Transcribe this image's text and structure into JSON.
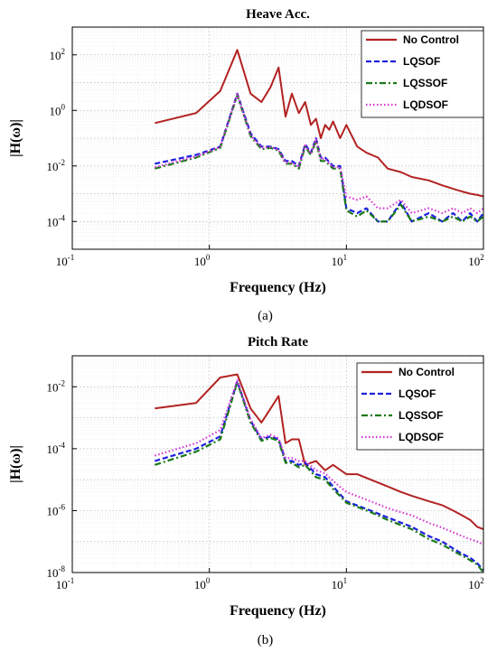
{
  "chart_data": [
    {
      "type": "line",
      "panel_label": "(a)",
      "title": "Heave Acc.",
      "xlabel": "Frequency (Hz)",
      "ylabel": "|H(ω)|",
      "xscale": "log",
      "yscale": "log",
      "xlim": [
        0.1,
        100
      ],
      "ylim": [
        1e-05,
        1000
      ],
      "x_ticks": [
        {
          "base": "10",
          "exp": "-1"
        },
        {
          "base": "10",
          "exp": "0"
        },
        {
          "base": "10",
          "exp": "1"
        },
        {
          "base": "10",
          "exp": "2"
        }
      ],
      "y_ticks": [
        {
          "base": "10",
          "exp": "-4"
        },
        {
          "base": "10",
          "exp": "-2"
        },
        {
          "base": "10",
          "exp": "0"
        },
        {
          "base": "10",
          "exp": "2"
        }
      ],
      "grid": true,
      "legend_position": "top-right",
      "series": [
        {
          "name": "No Control",
          "color": "#b22222",
          "style": "solid",
          "x": [
            0.4,
            0.8,
            1.2,
            1.6,
            2.0,
            2.4,
            2.8,
            3.2,
            3.6,
            4.0,
            4.5,
            5.0,
            5.5,
            6.0,
            6.5,
            7.0,
            7.5,
            8.0,
            9.0,
            10,
            12,
            14,
            17,
            20,
            25,
            30,
            40,
            50,
            60,
            70,
            80,
            90,
            100
          ],
          "y": [
            0.35,
            0.8,
            5,
            150,
            4,
            2,
            7,
            35,
            0.6,
            4,
            0.8,
            2,
            0.3,
            0.5,
            0.1,
            0.3,
            0.2,
            0.4,
            0.1,
            0.3,
            0.05,
            0.03,
            0.02,
            0.008,
            0.006,
            0.004,
            0.003,
            0.002,
            0.0015,
            0.0012,
            0.001,
            0.0009,
            0.0008
          ]
        },
        {
          "name": "LQSOF",
          "color": "#1f1fe0",
          "style": "dashed",
          "x": [
            0.4,
            0.8,
            1.2,
            1.6,
            2.0,
            2.4,
            2.8,
            3.2,
            3.6,
            4.0,
            4.5,
            5.0,
            5.5,
            6.0,
            6.5,
            7.0,
            8.0,
            9.0,
            10,
            12,
            14,
            17,
            20,
            25,
            30,
            40,
            50,
            60,
            70,
            80,
            90,
            100
          ],
          "y": [
            0.012,
            0.025,
            0.05,
            4,
            0.15,
            0.05,
            0.05,
            0.04,
            0.015,
            0.015,
            0.01,
            0.06,
            0.03,
            0.1,
            0.02,
            0.02,
            0.01,
            0.01,
            0.0003,
            0.0002,
            0.0003,
            0.0001,
            0.0001,
            0.0005,
            0.0001,
            0.0002,
            0.0001,
            0.0002,
            0.0001,
            0.0002,
            0.0001,
            0.0002
          ]
        },
        {
          "name": "LQSSOF",
          "color": "#1a7a1a",
          "style": "dashdot",
          "x": [
            0.4,
            0.8,
            1.2,
            1.6,
            2.0,
            2.4,
            2.8,
            3.2,
            3.6,
            4.0,
            4.5,
            5.0,
            5.5,
            6.0,
            6.5,
            7.0,
            8.0,
            9.0,
            10,
            12,
            14,
            17,
            20,
            25,
            30,
            40,
            50,
            60,
            70,
            80,
            90,
            100
          ],
          "y": [
            0.008,
            0.02,
            0.045,
            3.5,
            0.12,
            0.04,
            0.045,
            0.035,
            0.012,
            0.012,
            0.008,
            0.05,
            0.025,
            0.08,
            0.015,
            0.015,
            0.008,
            0.008,
            0.00025,
            0.00015,
            0.00025,
            0.0001,
            0.0001,
            0.0004,
            0.0001,
            0.00015,
            0.0001,
            0.00015,
            0.0001,
            0.00015,
            0.0001,
            0.00015
          ]
        },
        {
          "name": "LQDSOF",
          "color": "#d633d6",
          "style": "dotted",
          "x": [
            0.4,
            0.8,
            1.2,
            1.6,
            2.0,
            2.4,
            2.8,
            3.2,
            3.6,
            4.0,
            4.5,
            5.0,
            5.5,
            6.0,
            6.5,
            7.0,
            8.0,
            9.0,
            10,
            12,
            14,
            17,
            20,
            25,
            30,
            40,
            50,
            60,
            70,
            80,
            90,
            100
          ],
          "y": [
            0.009,
            0.022,
            0.048,
            3.8,
            0.13,
            0.045,
            0.048,
            0.038,
            0.013,
            0.013,
            0.009,
            0.055,
            0.028,
            0.09,
            0.018,
            0.018,
            0.009,
            0.009,
            0.0008,
            0.0006,
            0.0008,
            0.0003,
            0.0003,
            0.0006,
            0.0002,
            0.0003,
            0.0002,
            0.0003,
            0.0002,
            0.0003,
            0.0002,
            0.0003
          ]
        }
      ]
    },
    {
      "type": "line",
      "panel_label": "(b)",
      "title": "Pitch Rate",
      "xlabel": "Frequency (Hz)",
      "ylabel": "|H(ω)|",
      "xscale": "log",
      "yscale": "log",
      "xlim": [
        0.1,
        100
      ],
      "ylim": [
        1e-08,
        0.1
      ],
      "x_ticks": [
        {
          "base": "10",
          "exp": "-1"
        },
        {
          "base": "10",
          "exp": "0"
        },
        {
          "base": "10",
          "exp": "1"
        },
        {
          "base": "10",
          "exp": "2"
        }
      ],
      "y_ticks": [
        {
          "base": "10",
          "exp": "-8"
        },
        {
          "base": "10",
          "exp": "-6"
        },
        {
          "base": "10",
          "exp": "-4"
        },
        {
          "base": "10",
          "exp": "-2"
        }
      ],
      "grid": true,
      "legend_position": "top-right",
      "series": [
        {
          "name": "No Control",
          "color": "#b22222",
          "style": "solid",
          "x": [
            0.4,
            0.8,
            1.2,
            1.6,
            2.0,
            2.4,
            2.8,
            3.2,
            3.6,
            4.0,
            4.5,
            5.0,
            6.0,
            7.0,
            8.0,
            10,
            12,
            15,
            20,
            25,
            30,
            40,
            50,
            60,
            70,
            80,
            90,
            100
          ],
          "y": [
            0.002,
            0.003,
            0.02,
            0.025,
            0.002,
            0.0007,
            0.002,
            0.005,
            0.00015,
            0.0002,
            0.0002,
            3e-05,
            4e-05,
            2e-05,
            3e-05,
            1.5e-05,
            1.5e-05,
            1e-05,
            6e-06,
            4e-06,
            3e-06,
            2e-06,
            1.5e-06,
            1e-06,
            7e-07,
            5e-07,
            3e-07,
            2.5e-07
          ]
        },
        {
          "name": "LQSOF",
          "color": "#1f1fe0",
          "style": "dashed",
          "x": [
            0.4,
            0.8,
            1.2,
            1.6,
            2.0,
            2.4,
            2.8,
            3.2,
            3.6,
            4.0,
            4.5,
            5.0,
            6.0,
            7.0,
            8.0,
            10,
            15,
            20,
            30,
            40,
            50,
            60,
            70,
            80,
            90,
            100
          ],
          "y": [
            4e-05,
            0.0001,
            0.00025,
            0.015,
            0.0008,
            0.0002,
            0.00025,
            0.0002,
            4e-05,
            4e-05,
            3e-05,
            3.5e-05,
            1.5e-05,
            1.2e-05,
            6e-06,
            2e-06,
            1e-06,
            6e-07,
            3e-07,
            1.5e-07,
            1e-07,
            6e-08,
            4e-08,
            3e-08,
            2e-08,
            1.2e-08
          ]
        },
        {
          "name": "LQSSOF",
          "color": "#1a7a1a",
          "style": "dashdot",
          "x": [
            0.4,
            0.8,
            1.2,
            1.6,
            2.0,
            2.4,
            2.8,
            3.2,
            3.6,
            4.0,
            4.5,
            5.0,
            6.0,
            7.0,
            8.0,
            10,
            15,
            20,
            30,
            40,
            50,
            60,
            70,
            80,
            90,
            100
          ],
          "y": [
            3e-05,
            8e-05,
            0.0002,
            0.014,
            0.0007,
            0.00018,
            0.00022,
            0.00018,
            3.5e-05,
            3.5e-05,
            2.5e-05,
            3e-05,
            1.2e-05,
            1e-05,
            5e-06,
            1.8e-06,
            9e-07,
            5e-07,
            2.5e-07,
            1.2e-07,
            8e-08,
            5e-08,
            3.5e-08,
            2.5e-08,
            1.8e-08,
            1e-08
          ]
        },
        {
          "name": "LQDSOF",
          "color": "#d633d6",
          "style": "dotted",
          "x": [
            0.4,
            0.8,
            1.2,
            1.6,
            2.0,
            2.4,
            2.8,
            3.2,
            3.6,
            4.0,
            4.5,
            5.0,
            6.0,
            7.0,
            8.0,
            10,
            15,
            20,
            30,
            40,
            50,
            60,
            70,
            80,
            90,
            100
          ],
          "y": [
            6e-05,
            0.00015,
            0.0004,
            0.016,
            0.0009,
            0.00022,
            0.00028,
            0.00022,
            5e-05,
            5e-05,
            4e-05,
            4e-05,
            2e-05,
            1.6e-05,
            9e-06,
            4e-06,
            2e-06,
            1.2e-06,
            7e-07,
            4e-07,
            2.8e-07,
            2e-07,
            1.5e-07,
            1.2e-07,
            1e-07,
            8e-08
          ]
        }
      ]
    }
  ]
}
